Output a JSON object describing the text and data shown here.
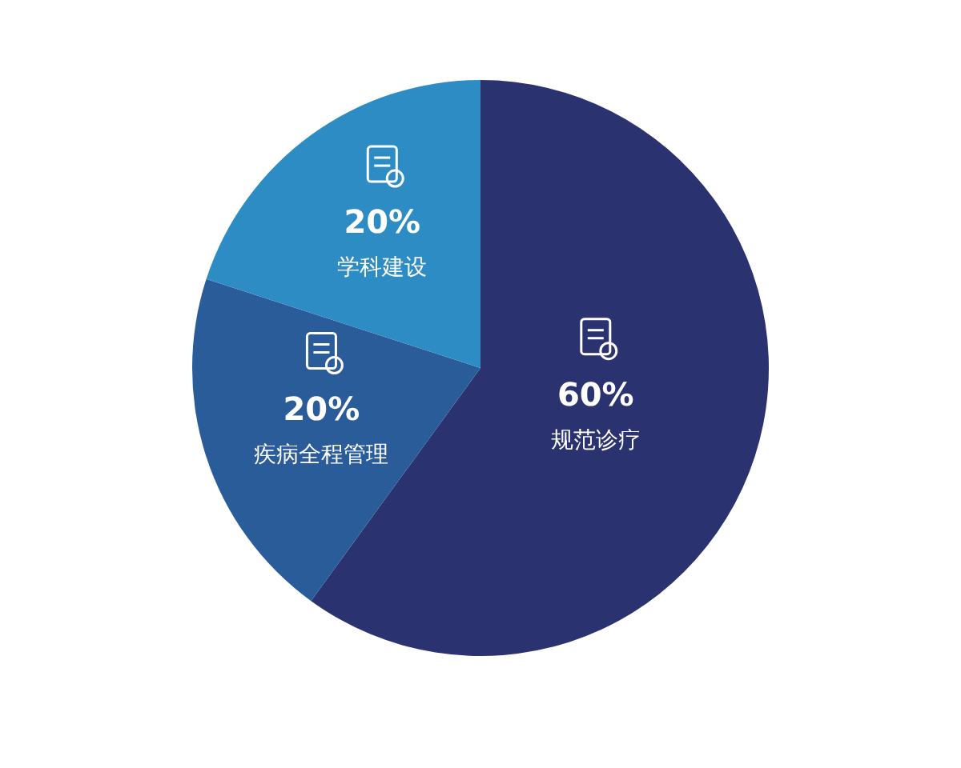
{
  "chart_data": {
    "type": "pie",
    "categories": [
      "规范诊疗",
      "疾病全程管理",
      "学科建设"
    ],
    "values": [
      60,
      20,
      20
    ],
    "colors": [
      "#2b3270",
      "#2a5c9a",
      "#2e8cc4"
    ],
    "value_labels": [
      "60%",
      "20%",
      "20%"
    ]
  }
}
